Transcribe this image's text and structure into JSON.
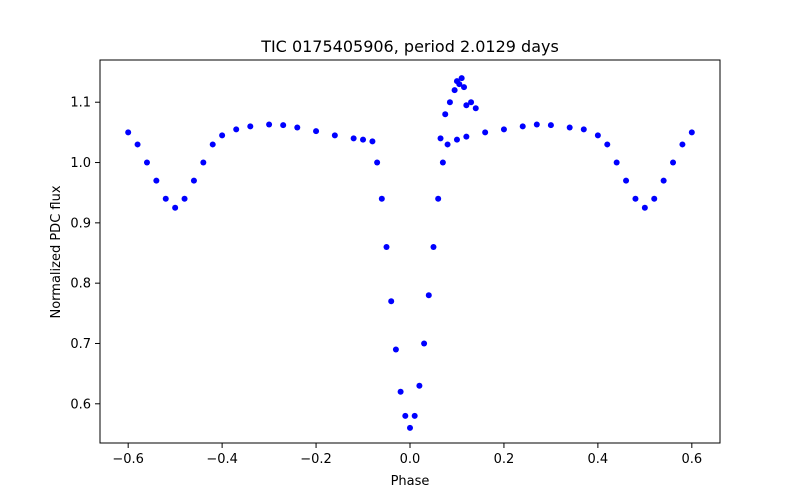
{
  "chart_data": {
    "type": "scatter",
    "title": "TIC 0175405906, period 2.0129 days",
    "xlabel": "Phase",
    "ylabel": "Normalized PDC flux",
    "xlim": [
      -0.66,
      0.66
    ],
    "ylim": [
      0.535,
      1.17
    ],
    "xticks": [
      -0.6,
      -0.4,
      -0.2,
      0.0,
      0.2,
      0.4,
      0.6
    ],
    "xtick_labels": [
      "−0.6",
      "−0.4",
      "−0.2",
      "0.0",
      "0.2",
      "0.4",
      "0.6"
    ],
    "yticks": [
      0.6,
      0.7,
      0.8,
      0.9,
      1.0,
      1.1
    ],
    "ytick_labels": [
      "0.6",
      "0.7",
      "0.8",
      "0.9",
      "1.0",
      "1.1"
    ],
    "grid": false,
    "legend": false,
    "marker_color": "#0000ff",
    "series": [
      {
        "x": [
          -0.6,
          -0.58,
          -0.56,
          -0.54,
          -0.52,
          -0.5,
          -0.48,
          -0.46,
          -0.44,
          -0.42,
          -0.4,
          -0.37,
          -0.34,
          -0.3,
          -0.27,
          -0.24,
          -0.2,
          -0.16,
          -0.12,
          -0.1,
          -0.08,
          -0.07,
          -0.06,
          -0.05,
          -0.04,
          -0.03,
          -0.02,
          -0.01,
          0.0,
          0.01,
          0.02,
          0.03,
          0.04,
          0.05,
          0.06,
          0.07,
          0.08,
          0.1,
          0.12,
          0.16,
          0.2,
          0.24,
          0.27,
          0.3,
          0.34,
          0.37,
          0.4,
          0.42,
          0.44,
          0.46,
          0.48,
          0.5,
          0.52,
          0.54,
          0.56,
          0.58,
          0.6
        ],
        "y": [
          1.05,
          1.03,
          1.0,
          0.97,
          0.94,
          0.925,
          0.94,
          0.97,
          1.0,
          1.03,
          1.045,
          1.055,
          1.06,
          1.063,
          1.062,
          1.058,
          1.052,
          1.045,
          1.04,
          1.038,
          1.035,
          1.0,
          0.94,
          0.86,
          0.77,
          0.69,
          0.62,
          0.58,
          0.56,
          0.58,
          0.63,
          0.7,
          0.78,
          0.86,
          0.94,
          1.0,
          1.03,
          1.038,
          1.043,
          1.05,
          1.055,
          1.06,
          1.063,
          1.062,
          1.058,
          1.055,
          1.045,
          1.03,
          1.0,
          0.97,
          0.94,
          0.925,
          0.94,
          0.97,
          1.0,
          1.03,
          1.05
        ]
      },
      {
        "x": [
          0.065,
          0.075,
          0.085,
          0.095,
          0.1,
          0.105,
          0.11,
          0.115,
          0.12,
          0.13,
          0.14
        ],
        "y": [
          1.04,
          1.08,
          1.1,
          1.12,
          1.135,
          1.13,
          1.14,
          1.125,
          1.095,
          1.1,
          1.09
        ]
      }
    ]
  }
}
